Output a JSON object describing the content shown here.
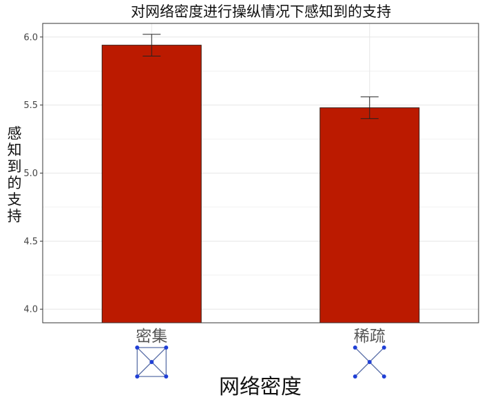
{
  "chart_data": {
    "type": "bar",
    "title": "对网络密度进行操纵情况下感知到的支持",
    "xlabel": "网络密度",
    "ylabel": "感知到的支持",
    "categories": [
      "密集",
      "稀疏"
    ],
    "values": [
      5.94,
      5.48
    ],
    "error_low": [
      5.86,
      5.4
    ],
    "error_high": [
      6.02,
      5.56
    ],
    "ylim": [
      3.9,
      6.1
    ],
    "yticks": [
      4.0,
      4.5,
      5.0,
      5.5,
      6.0
    ],
    "ytick_labels": [
      "4.0",
      "4.5",
      "5.0",
      "5.5",
      "6.0"
    ],
    "grid": true,
    "legend": "none",
    "category_icons": [
      "dense-network-icon",
      "sparse-network-icon"
    ],
    "colors": {
      "bar_fill": "#bb1a00",
      "bar_stroke": "#3a1a10",
      "grid": "#e6e6e6",
      "icon_node": "#1f3fd6",
      "icon_edge": "#5a6fa8"
    }
  }
}
